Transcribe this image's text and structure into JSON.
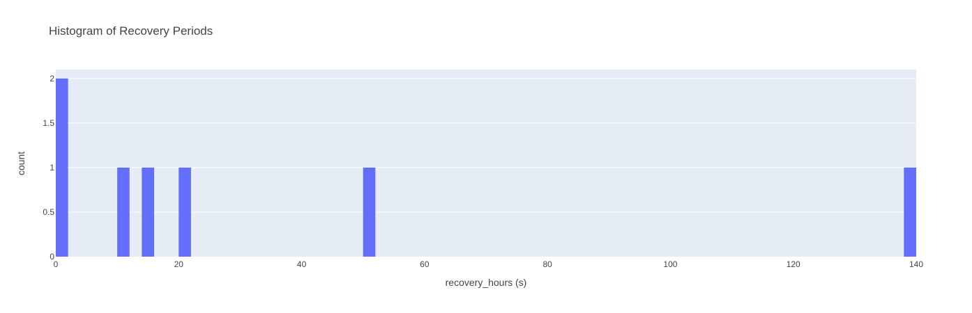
{
  "chart_data": {
    "type": "bar",
    "title": "Histogram of Recovery Periods",
    "xlabel": "recovery_hours (s)",
    "ylabel": "count",
    "xlim": [
      0,
      140
    ],
    "ylim": [
      0,
      2.1
    ],
    "bin_size": 2,
    "x_ticks": [
      0,
      20,
      40,
      60,
      80,
      100,
      120,
      140
    ],
    "y_ticks": [
      0,
      0.5,
      1,
      1.5,
      2
    ],
    "y_tick_labels": [
      "0",
      "0.5",
      "1",
      "1.5",
      "2"
    ],
    "bins": [
      {
        "start": 0,
        "end": 2,
        "count": 2
      },
      {
        "start": 10,
        "end": 12,
        "count": 1
      },
      {
        "start": 14,
        "end": 16,
        "count": 1
      },
      {
        "start": 20,
        "end": 22,
        "count": 1
      },
      {
        "start": 50,
        "end": 52,
        "count": 1
      },
      {
        "start": 138,
        "end": 140,
        "count": 1
      }
    ],
    "grid": true,
    "legend": "none",
    "colors": {
      "bar": "#636efa",
      "plot_bg": "#e5ecf6",
      "grid": "#ffffff",
      "text": "#444444"
    }
  }
}
